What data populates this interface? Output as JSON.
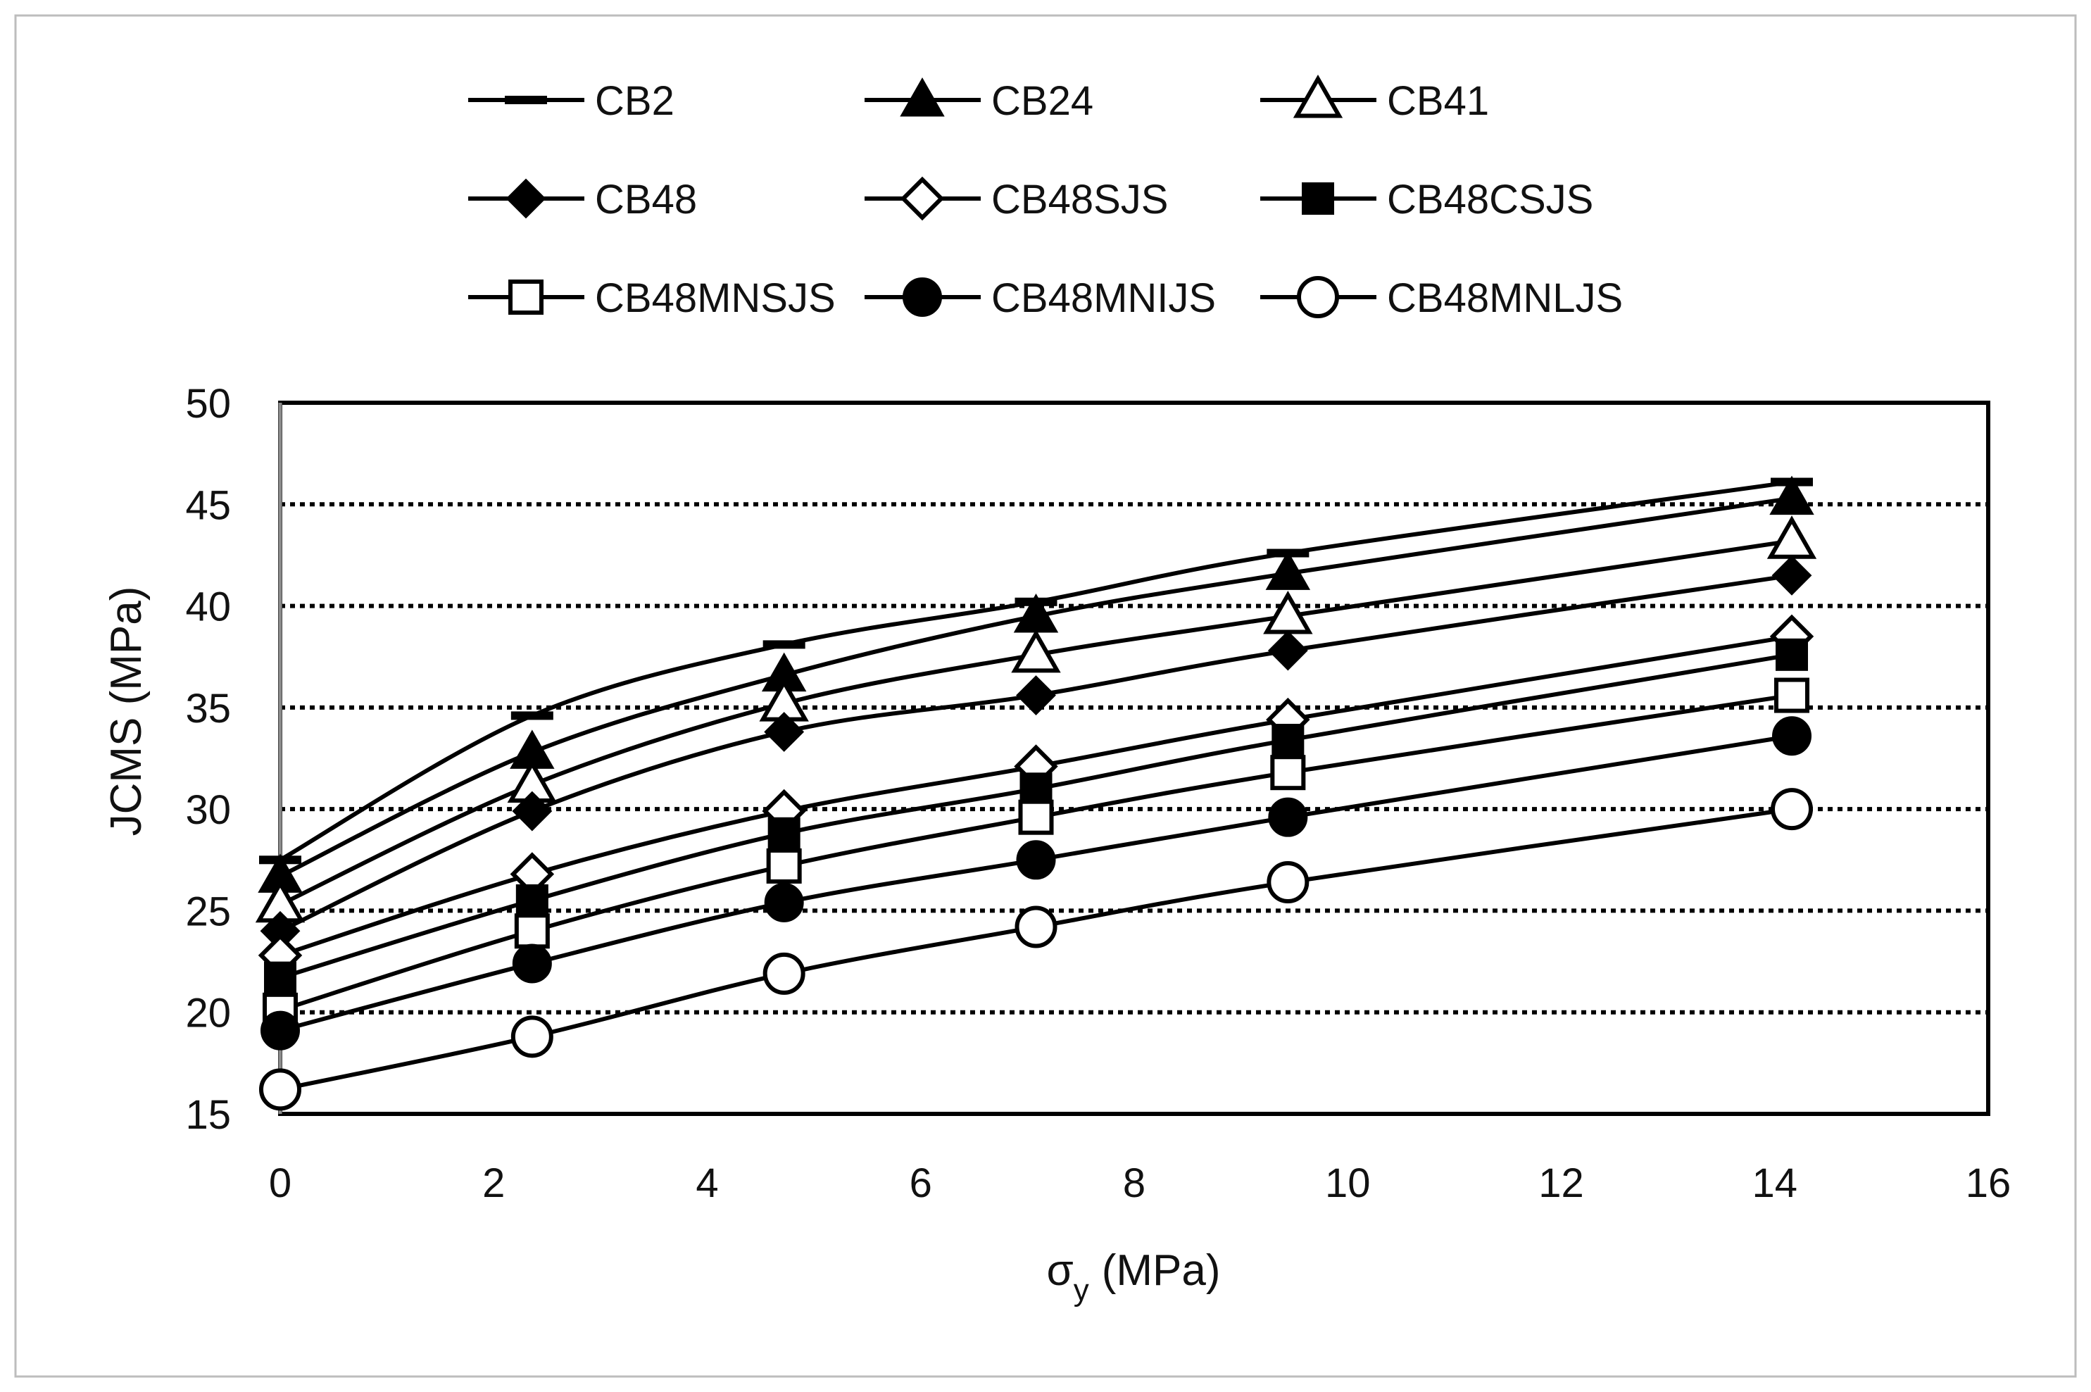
{
  "chart_data": {
    "type": "line",
    "title": "",
    "xlabel": "σ",
    "xlabel_subscript": "y",
    "xlabel_unit": "(MPa)",
    "ylabel": "JCMS  (MPa)",
    "xlim": [
      0,
      16
    ],
    "ylim": [
      15,
      50
    ],
    "xticks": [
      "0",
      "2",
      "4",
      "6",
      "8",
      "10",
      "12",
      "14",
      "16"
    ],
    "yticks": [
      "15",
      "20",
      "25",
      "30",
      "35",
      "40",
      "45",
      "50"
    ],
    "grid": "horizontal dotted",
    "legend": "top",
    "x": [
      0,
      2.36,
      4.72,
      7.08,
      9.44,
      14.16
    ],
    "series": [
      {
        "name": "CB2",
        "marker": "dash",
        "values": [
          27.5,
          34.6,
          38.1,
          40.2,
          42.6,
          46.1
        ]
      },
      {
        "name": "CB24",
        "marker": "triangle-filled",
        "values": [
          26.7,
          32.8,
          36.6,
          39.5,
          41.6,
          45.3
        ]
      },
      {
        "name": "CB41",
        "marker": "triangle-open",
        "values": [
          25.3,
          31.2,
          35.2,
          37.6,
          39.5,
          43.2
        ]
      },
      {
        "name": "CB48",
        "marker": "diamond-filled",
        "values": [
          24.0,
          29.9,
          33.8,
          35.6,
          37.8,
          41.5
        ]
      },
      {
        "name": "CB48SJS",
        "marker": "diamond-open",
        "values": [
          22.8,
          26.8,
          29.9,
          32.1,
          34.4,
          38.5
        ]
      },
      {
        "name": "CB48CSJS",
        "marker": "square-filled",
        "values": [
          21.7,
          25.5,
          28.8,
          31.0,
          33.4,
          37.6
        ]
      },
      {
        "name": "CB48MNSJS",
        "marker": "square-open",
        "values": [
          20.1,
          24.0,
          27.2,
          29.6,
          31.8,
          35.6
        ]
      },
      {
        "name": "CB48MNIJS",
        "marker": "circle-filled",
        "values": [
          19.1,
          22.4,
          25.4,
          27.5,
          29.6,
          33.6
        ]
      },
      {
        "name": "CB48MNLJS",
        "marker": "circle-open",
        "values": [
          16.2,
          18.8,
          21.9,
          24.2,
          26.4,
          30.0
        ]
      }
    ]
  }
}
